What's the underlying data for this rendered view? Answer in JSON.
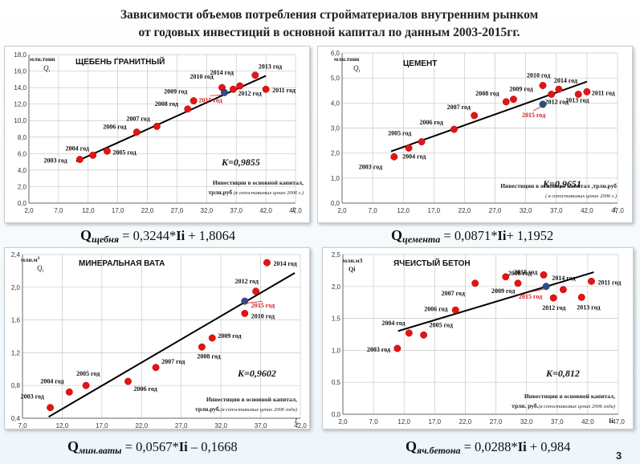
{
  "title_line1": "Зависимости объемов потребления стройматериалов внутренним рынком",
  "title_line2": "от годовых  инвестиций в основной капитал по данным 2003-2015гг.",
  "page_number": "3",
  "formulas": [
    {
      "q": "Q",
      "sub": "щебня",
      "pre": " = 0,3244*",
      "ii": "Ii",
      "post": " + 1,8064"
    },
    {
      "q": "Q",
      "sub": "цемента",
      "pre": " = 0,0871*",
      "ii": "Ii",
      "post": "+ 1,1952"
    },
    {
      "q": "Q",
      "sub": "мин.ваты",
      "pre": " = 0,0567*",
      "ii": "Ii",
      "post": " – 0,1668"
    },
    {
      "q": "Q",
      "sub": "яч.бетона",
      "pre": " = 0,0288*",
      "ii": "Ii",
      "post": " + 0,984"
    }
  ],
  "colors": {
    "point": "#e41414",
    "point_2015": "#2e4a8a",
    "trend": "#000000",
    "label_2015": "#d11a1a"
  },
  "chart_data": [
    {
      "type": "scatter",
      "title": "ЩЕБЕНЬ ГРАНИТНЫЙ",
      "ylabel": "млн.тонн",
      "ysym": "Q",
      "ysub": "i",
      "xsym": "I",
      "xsub": "i",
      "xlabel_line1": "Инвестиции в основной капитал,",
      "xlabel_line2_bold": "трлн.руб",
      "xlabel_line2_ital": " (в сопоставимых ценах 2006 г.)",
      "k_text": "K=0,9855",
      "xlim": [
        2,
        47
      ],
      "ylim": [
        0,
        18
      ],
      "xticks": [
        "2,0",
        "7,0",
        "12,0",
        "17,0",
        "22,0",
        "27,0",
        "32,0",
        "37,0",
        "42,0",
        "47,0"
      ],
      "yticks": [
        "0,0",
        "2,0",
        "4,0",
        "6,0",
        "8,0",
        "10,0",
        "12,0",
        "14,0",
        "16,0",
        "18,0"
      ],
      "trend": {
        "slope": 0.3244,
        "intercept": 1.8064,
        "x": [
          10,
          42
        ]
      },
      "points": [
        {
          "year": "2003 год",
          "x": 10.6,
          "y": 5.3
        },
        {
          "year": "2004 год",
          "x": 12.8,
          "y": 5.8
        },
        {
          "year": "2005 год",
          "x": 15.2,
          "y": 6.3
        },
        {
          "year": "2006 год",
          "x": 20.2,
          "y": 8.6
        },
        {
          "year": "2007 год",
          "x": 23.6,
          "y": 9.3
        },
        {
          "year": "2008 год",
          "x": 28.8,
          "y": 11.4
        },
        {
          "year": "2009 год",
          "x": 29.8,
          "y": 12.4
        },
        {
          "year": "2010 год",
          "x": 34.6,
          "y": 14.0
        },
        {
          "year": "2011 год",
          "x": 42.0,
          "y": 13.8
        },
        {
          "year": "2012 год",
          "x": 36.5,
          "y": 13.8
        },
        {
          "year": "2013 год",
          "x": 40.2,
          "y": 15.5
        },
        {
          "year": "2014 год",
          "x": 37.6,
          "y": 14.2
        },
        {
          "year": "2015 год",
          "x": 35.0,
          "y": 13.4,
          "highlight": true
        }
      ]
    },
    {
      "type": "scatter",
      "title": "ЦЕМЕНТ",
      "ylabel": "млн.тонн",
      "ysym": "Q",
      "ysub": "i",
      "xsym": "I",
      "xsub": "i",
      "xlabel_line1": "Инвестиции в основной капитал ,трлн.руб",
      "xlabel_line2_bold": "",
      "xlabel_line2_ital": "( в сопоставимых ценах 2006 г.)",
      "k_text": "K=0,9651",
      "xlim": [
        2,
        47
      ],
      "ylim": [
        0,
        6
      ],
      "xticks": [
        "2,0",
        "7,0",
        "12,0",
        "17,0",
        "22,0",
        "27,0",
        "32,0",
        "37,0",
        "42,0",
        "47,0"
      ],
      "yticks": [
        "0,0",
        "1,0",
        "2,0",
        "3,0",
        "4,0",
        "5,0",
        "6,0"
      ],
      "trend": {
        "slope": 0.0871,
        "intercept": 1.1952,
        "x": [
          10,
          42
        ]
      },
      "points": [
        {
          "year": "2003 год",
          "x": 10.5,
          "y": 1.85
        },
        {
          "year": "2004 год",
          "x": 12.9,
          "y": 2.2
        },
        {
          "year": "2005 год",
          "x": 15.0,
          "y": 2.45
        },
        {
          "year": "2006 год",
          "x": 20.3,
          "y": 2.95
        },
        {
          "year": "2007 год",
          "x": 23.6,
          "y": 3.5
        },
        {
          "year": "2008 год",
          "x": 28.8,
          "y": 4.05
        },
        {
          "year": "2009 год",
          "x": 30.0,
          "y": 4.15
        },
        {
          "year": "2010 год",
          "x": 34.8,
          "y": 4.7
        },
        {
          "year": "2011 год",
          "x": 42.0,
          "y": 4.45
        },
        {
          "year": "2012 год",
          "x": 36.2,
          "y": 4.35
        },
        {
          "year": "2013 год",
          "x": 40.6,
          "y": 4.35
        },
        {
          "year": "2014 год",
          "x": 37.4,
          "y": 4.55
        },
        {
          "year": "2015 год",
          "x": 34.8,
          "y": 3.95,
          "highlight": true
        }
      ]
    },
    {
      "type": "scatter",
      "title": "МИНЕРАЛЬНАЯ ВАТА",
      "ylabel": "млн.м",
      "ysup": "3",
      "ysym": "Q",
      "ysub": "i",
      "xsym": "I",
      "xsub": "i",
      "xlabel_line1": "Инвестиции в основной капитал,",
      "xlabel_line2_bold": "трлн.руб.",
      "xlabel_line2_ital": "(в сопоставимых ценах 2006 года)",
      "k_text": "K=0,9602",
      "xlim": [
        7,
        42
      ],
      "ylim": [
        0.4,
        2.4
      ],
      "xticks": [
        "7,0",
        "12,0",
        "17,0",
        "22,0",
        "27,0",
        "32,0",
        "37,0",
        "42,0"
      ],
      "yticks": [
        "0,4",
        "0,8",
        "1,2",
        "1,6",
        "2,0",
        "2,4"
      ],
      "trend": {
        "slope": 0.0567,
        "intercept": -0.1668,
        "x": [
          10.3,
          41.3
        ]
      },
      "points": [
        {
          "year": "2003 год",
          "x": 10.5,
          "y": 0.53
        },
        {
          "year": "2004 год",
          "x": 12.9,
          "y": 0.72
        },
        {
          "year": "2005 год",
          "x": 15.0,
          "y": 0.8
        },
        {
          "year": "2006 год",
          "x": 20.3,
          "y": 0.85
        },
        {
          "year": "2007 год",
          "x": 23.8,
          "y": 1.02
        },
        {
          "year": "2008 год",
          "x": 29.6,
          "y": 1.27
        },
        {
          "year": "2009 год",
          "x": 30.9,
          "y": 1.38
        },
        {
          "year": "2010 год",
          "x": 35.0,
          "y": 1.68
        },
        {
          "year": "2012 год",
          "x": 36.4,
          "y": 1.95
        },
        {
          "year": "2014 год",
          "x": 37.8,
          "y": 2.3
        },
        {
          "year": "2015 год",
          "x": 35.0,
          "y": 1.83,
          "highlight": true
        }
      ]
    },
    {
      "type": "scatter",
      "title": "ЯЧЕИСТЫЙ БЕТОН",
      "ylabel": "млн.м3",
      "ylabel2": "Qi",
      "xlabel_line1": "Инвестиции в основной капитал,",
      "xlabel_line2_bold": "трлн. руб.",
      "xlabel_line2_ital": "(в сопоставимых ценах 2006 года)",
      "xsym": "Ii",
      "k_text": "K=0,812",
      "xlim": [
        2,
        47
      ],
      "ylim": [
        0,
        2.5
      ],
      "xticks": [
        "2,0",
        "7,0",
        "12,0",
        "17,0",
        "22,0",
        "27,0",
        "32,0",
        "37,0",
        "42,0",
        "47,0"
      ],
      "yticks": [
        "0,0",
        "0,5",
        "1,0",
        "1,5",
        "2,0",
        "2,5"
      ],
      "trend": {
        "slope": 0.0288,
        "intercept": 0.984,
        "x": [
          11,
          43
        ]
      },
      "points": [
        {
          "year": "2003 год",
          "x": 10.9,
          "y": 1.03
        },
        {
          "year": "2004 год",
          "x": 12.8,
          "y": 1.27
        },
        {
          "year": "2005 год",
          "x": 15.2,
          "y": 1.24
        },
        {
          "year": "2006 год",
          "x": 20.4,
          "y": 1.63
        },
        {
          "year": "2007 год",
          "x": 23.6,
          "y": 2.05
        },
        {
          "year": "2008 год",
          "x": 28.6,
          "y": 2.15
        },
        {
          "year": "2009 год",
          "x": 30.6,
          "y": 2.05
        },
        {
          "year": "2010 год",
          "x": 34.8,
          "y": 2.18
        },
        {
          "year": "2011 год",
          "x": 42.6,
          "y": 2.08
        },
        {
          "year": "2012 год",
          "x": 36.4,
          "y": 1.82
        },
        {
          "year": "2013 год",
          "x": 41.0,
          "y": 1.83
        },
        {
          "year": "2014 год",
          "x": 38.0,
          "y": 1.95
        },
        {
          "year": "2015 год",
          "x": 35.2,
          "y": 2.0,
          "highlight": true
        }
      ]
    }
  ]
}
